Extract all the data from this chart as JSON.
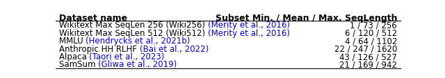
{
  "header": [
    "Dataset name",
    "Subset Min. / Mean / Max. SeqLength"
  ],
  "rows": [
    {
      "name_parts": [
        {
          "text": "Wikitext Max SeqLen 256 (Wiki256) ",
          "color": "#000000"
        },
        {
          "text": "(Merity et al., 2016)",
          "color": "#0000cc"
        }
      ],
      "value": "1 / 73 / 256"
    },
    {
      "name_parts": [
        {
          "text": "Wikitext Max SeqLen 512 (Wiki512) ",
          "color": "#000000"
        },
        {
          "text": "(Merity et al., 2016)",
          "color": "#0000cc"
        }
      ],
      "value": "6 / 120 / 512"
    },
    {
      "name_parts": [
        {
          "text": "MMLU ",
          "color": "#000000"
        },
        {
          "text": "(Hendrycks et al., 2021b)",
          "color": "#0000cc"
        }
      ],
      "value": "4 / 64 / 1102"
    },
    {
      "name_parts": [
        {
          "text": "Anthropic HH RLHF ",
          "color": "#000000"
        },
        {
          "text": "(Bai et al., 2022)",
          "color": "#0000cc"
        }
      ],
      "value": "22 / 247 / 1620"
    },
    {
      "name_parts": [
        {
          "text": "Alpaca ",
          "color": "#000000"
        },
        {
          "text": "(Taori et al., 2023)",
          "color": "#0000cc"
        }
      ],
      "value": "43 / 126 / 527"
    },
    {
      "name_parts": [
        {
          "text": "SamSum ",
          "color": "#000000"
        },
        {
          "text": "(Gliwa et al., 2019)",
          "color": "#0000cc"
        }
      ],
      "value": "21 / 169 / 942"
    }
  ],
  "bg_color": "#ffffff",
  "header_color": "#000000",
  "row_color": "#000000",
  "font_size": 8.5,
  "header_font_size": 9.0
}
